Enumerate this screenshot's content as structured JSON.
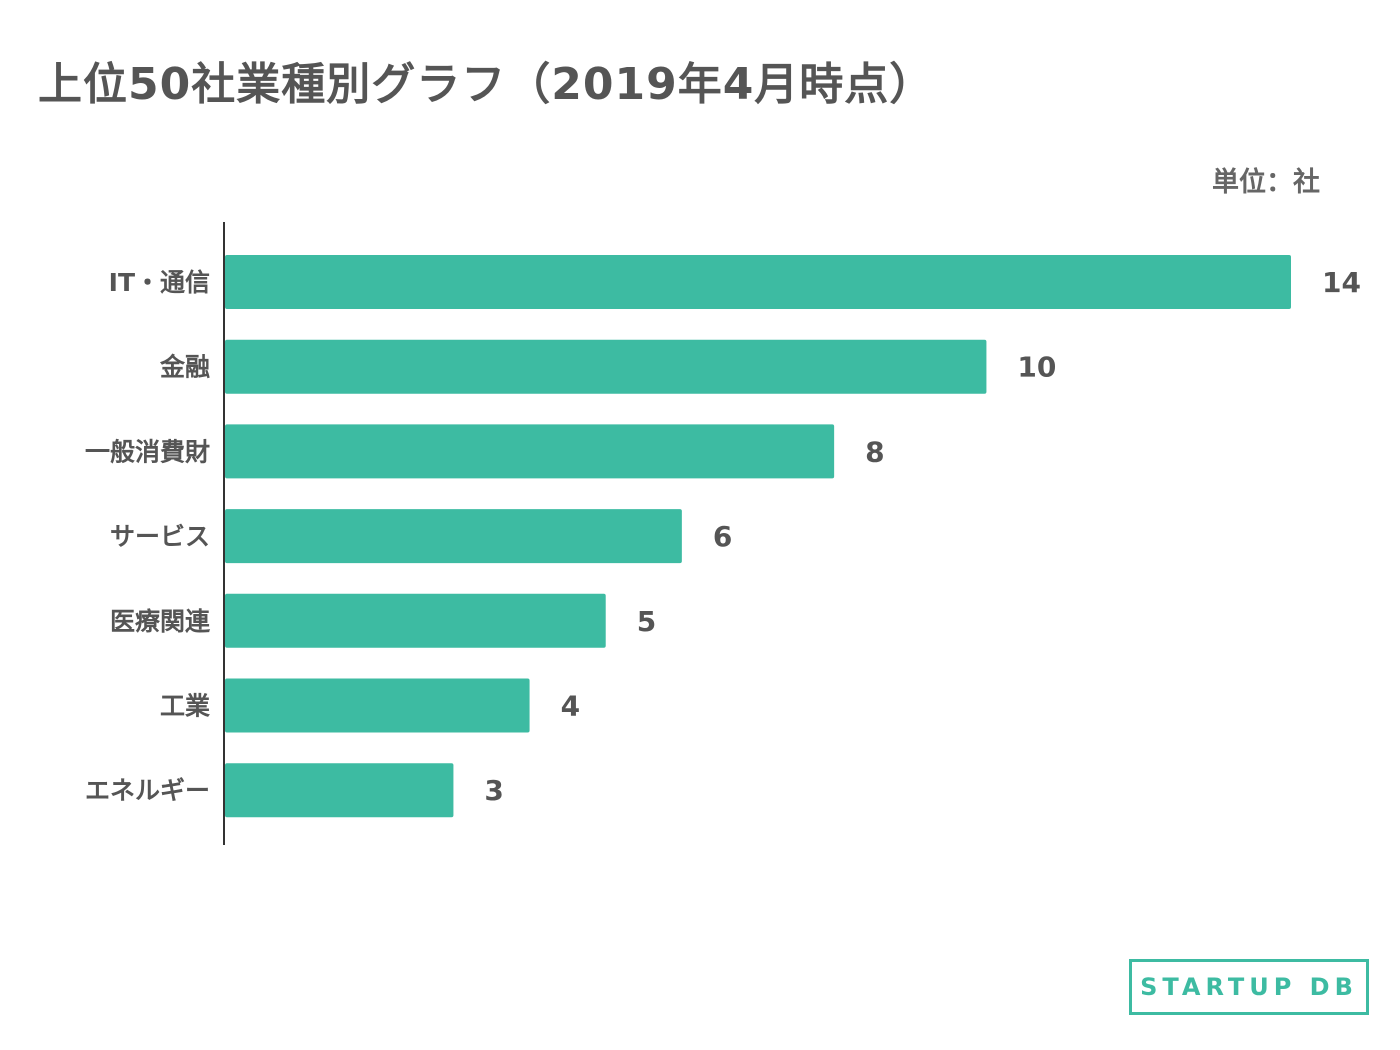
{
  "title": "上位50社業種別グラフ（2019年4月時点）",
  "unit_label": "単位：社",
  "logo_text": "STARTUP DB",
  "colors": {
    "bar": "#3dbba2",
    "text": "#555555",
    "axis": "#333333"
  },
  "chart_data": {
    "type": "bar",
    "orientation": "horizontal",
    "title": "上位50社業種別グラフ（2019年4月時点）",
    "xlabel": "",
    "ylabel": "",
    "unit": "単位：社",
    "categories": [
      "IT・通信",
      "金融",
      "一般消費財",
      "サービス",
      "医療関連",
      "工業",
      "エネルギー"
    ],
    "values": [
      14,
      10,
      8,
      6,
      5,
      4,
      3
    ],
    "data_labels": true,
    "grid": false,
    "legend": "none",
    "xlim": [
      0,
      14
    ]
  }
}
